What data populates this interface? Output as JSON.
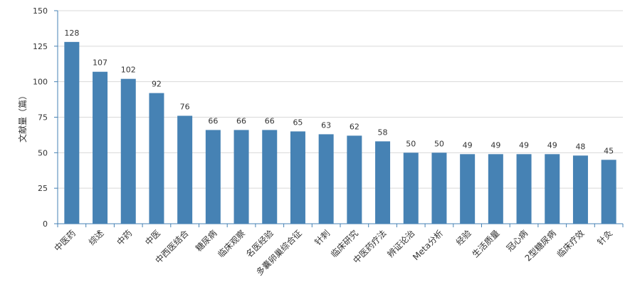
{
  "chart_data": {
    "type": "bar",
    "ylabel": "文献量（篇）",
    "ylim": [
      0,
      150
    ],
    "yticks": [
      0,
      25,
      50,
      75,
      100,
      125,
      150
    ],
    "grid": true,
    "categories": [
      "中医药",
      "综述",
      "中药",
      "中医",
      "中西医结合",
      "糖尿病",
      "临床观察",
      "名医经验",
      "多囊卵巢综合征",
      "针刺",
      "临床研究",
      "中医药疗法",
      "辨证论治",
      "Meta分析",
      "经验",
      "生活质量",
      "冠心病",
      "2型糖尿病",
      "临床疗效",
      "针灸"
    ],
    "values": [
      128,
      107,
      102,
      92,
      76,
      66,
      66,
      66,
      65,
      63,
      62,
      58,
      50,
      50,
      49,
      49,
      49,
      49,
      48,
      45
    ],
    "bar_color": "#4682b4",
    "axis_color": "#4682b4",
    "grid_color": "#d9d9d9"
  }
}
